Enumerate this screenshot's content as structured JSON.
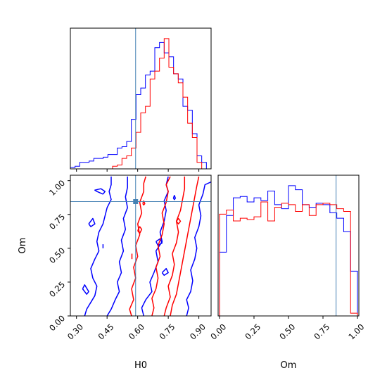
{
  "chart_data": {
    "type": "corner",
    "parameters": [
      "H0",
      "Om"
    ],
    "truth": {
      "H0": 0.59,
      "Om": 0.845
    },
    "truth_color": "#4682b4",
    "series": [
      {
        "color": "#0000ff"
      },
      {
        "color": "#ff0000"
      }
    ],
    "panels": [
      {
        "id": "hist-H0",
        "type": "histogram",
        "x_param": "H0",
        "xlim": [
          0.27,
          0.96
        ],
        "x_ticks": [
          0.3,
          0.45,
          0.6,
          0.75,
          0.9
        ],
        "tick_labels": [],
        "bin_edges": [
          0.27,
          0.293,
          0.316,
          0.339,
          0.362,
          0.385,
          0.408,
          0.431,
          0.454,
          0.477,
          0.5,
          0.523,
          0.546,
          0.569,
          0.592,
          0.615,
          0.638,
          0.661,
          0.684,
          0.707,
          0.73,
          0.753,
          0.776,
          0.799,
          0.822,
          0.845,
          0.868,
          0.891,
          0.914,
          0.937,
          0.96
        ],
        "series_counts": [
          [
            0.01,
            0.02,
            0.05,
            0.05,
            0.06,
            0.08,
            0.08,
            0.09,
            0.11,
            0.11,
            0.16,
            0.17,
            0.21,
            0.38,
            0.57,
            0.62,
            0.72,
            0.75,
            0.93,
            0.97,
            0.89,
            0.86,
            0.73,
            0.69,
            0.48,
            0.45,
            0.27,
            0.1,
            0.05,
            0.0
          ],
          [
            0.0,
            0.0,
            0.0,
            0.0,
            0.0,
            0.0,
            0.0,
            0.0,
            0.0,
            0.02,
            0.03,
            0.08,
            0.1,
            0.16,
            0.28,
            0.43,
            0.48,
            0.69,
            0.75,
            0.85,
            1.0,
            0.78,
            0.73,
            0.66,
            0.55,
            0.35,
            0.24,
            0.05,
            0.0,
            0.0
          ]
        ]
      },
      {
        "id": "hist-Om",
        "type": "histogram",
        "x_param": "Om",
        "xlim": [
          -0.01,
          1.01
        ],
        "x_ticks": [
          0.0,
          0.25,
          0.5,
          0.75,
          1.0
        ],
        "tick_labels": [
          "0.00",
          "0.25",
          "0.50",
          "0.75",
          "1.00"
        ],
        "xlabel": "Om",
        "bin_edges": [
          0.0,
          0.05,
          0.1,
          0.15,
          0.2,
          0.25,
          0.3,
          0.35,
          0.4,
          0.45,
          0.5,
          0.55,
          0.6,
          0.65,
          0.7,
          0.75,
          0.8,
          0.85,
          0.9,
          0.95,
          1.0
        ],
        "series_counts": [
          [
            0.47,
            0.74,
            0.87,
            0.88,
            0.84,
            0.87,
            0.85,
            0.92,
            0.82,
            0.79,
            0.96,
            0.93,
            0.82,
            0.8,
            0.83,
            0.82,
            0.76,
            0.72,
            0.62,
            0.33
          ],
          [
            0.75,
            0.78,
            0.7,
            0.72,
            0.71,
            0.73,
            0.84,
            0.7,
            0.8,
            0.83,
            0.82,
            0.77,
            0.82,
            0.74,
            0.82,
            0.83,
            0.82,
            0.79,
            0.77,
            0.02
          ]
        ]
      },
      {
        "id": "contour-H0-Om",
        "type": "contour",
        "x_param": "H0",
        "y_param": "Om",
        "xlim": [
          0.27,
          0.96
        ],
        "ylim": [
          0.0,
          1.04
        ],
        "x_ticks": [
          0.3,
          0.45,
          0.6,
          0.75,
          0.9
        ],
        "x_tick_labels": [
          "0.30",
          "0.45",
          "0.60",
          "0.75",
          "0.90"
        ],
        "y_ticks": [
          0.0,
          0.25,
          0.5,
          0.75,
          1.0
        ],
        "y_tick_labels": [
          "0.00",
          "0.25",
          "0.50",
          "0.75",
          "1.00"
        ],
        "xlabel": "H0",
        "ylabel": "Om",
        "contours": [
          {
            "series": 0,
            "points": [
              [
                0.34,
                0.0
              ],
              [
                0.35,
                0.05
              ],
              [
                0.37,
                0.1
              ],
              [
                0.39,
                0.15
              ],
              [
                0.4,
                0.22
              ],
              [
                0.38,
                0.28
              ],
              [
                0.37,
                0.35
              ],
              [
                0.39,
                0.42
              ],
              [
                0.41,
                0.48
              ],
              [
                0.4,
                0.55
              ],
              [
                0.41,
                0.62
              ],
              [
                0.43,
                0.68
              ],
              [
                0.44,
                0.74
              ],
              [
                0.45,
                0.8
              ],
              [
                0.47,
                0.86
              ],
              [
                0.46,
                0.92
              ],
              [
                0.47,
                0.97
              ],
              [
                0.47,
                1.03
              ]
            ]
          },
          {
            "series": 0,
            "points": [
              [
                0.45,
                0.0
              ],
              [
                0.47,
                0.05
              ],
              [
                0.49,
                0.12
              ],
              [
                0.51,
                0.18
              ],
              [
                0.5,
                0.25
              ],
              [
                0.52,
                0.32
              ],
              [
                0.51,
                0.4
              ],
              [
                0.53,
                0.48
              ],
              [
                0.52,
                0.56
              ],
              [
                0.54,
                0.64
              ],
              [
                0.53,
                0.72
              ],
              [
                0.55,
                0.8
              ],
              [
                0.54,
                0.88
              ],
              [
                0.55,
                0.95
              ],
              [
                0.55,
                1.03
              ]
            ]
          },
          {
            "series": 0,
            "points": [
              [
                0.63,
                0.0
              ],
              [
                0.62,
                0.06
              ],
              [
                0.64,
                0.12
              ],
              [
                0.67,
                0.18
              ],
              [
                0.66,
                0.25
              ],
              [
                0.68,
                0.32
              ],
              [
                0.7,
                0.4
              ],
              [
                0.69,
                0.48
              ],
              [
                0.72,
                0.55
              ],
              [
                0.71,
                0.62
              ],
              [
                0.73,
                0.7
              ],
              [
                0.74,
                0.78
              ],
              [
                0.73,
                0.85
              ],
              [
                0.75,
                0.92
              ],
              [
                0.74,
                0.97
              ],
              [
                0.75,
                1.03
              ]
            ]
          },
          {
            "series": 0,
            "points": [
              [
                0.84,
                0.0
              ],
              [
                0.85,
                0.06
              ],
              [
                0.84,
                0.12
              ],
              [
                0.86,
                0.18
              ],
              [
                0.87,
                0.26
              ],
              [
                0.86,
                0.34
              ],
              [
                0.88,
                0.42
              ],
              [
                0.89,
                0.5
              ],
              [
                0.88,
                0.58
              ],
              [
                0.9,
                0.66
              ],
              [
                0.91,
                0.74
              ],
              [
                0.9,
                0.82
              ],
              [
                0.92,
                0.9
              ],
              [
                0.93,
                0.97
              ],
              [
                0.96,
                0.99
              ]
            ]
          },
          {
            "series": 0,
            "points": [
              [
                0.43,
                0.9
              ],
              [
                0.4,
                0.92
              ],
              [
                0.39,
                0.93
              ],
              [
                0.42,
                0.94
              ],
              [
                0.44,
                0.92
              ],
              [
                0.43,
                0.9
              ]
            ]
          },
          {
            "series": 0,
            "points": [
              [
                0.36,
                0.68
              ],
              [
                0.38,
                0.72
              ],
              [
                0.39,
                0.68
              ],
              [
                0.37,
                0.66
              ],
              [
                0.36,
                0.68
              ]
            ]
          },
          {
            "series": 0,
            "points": [
              [
                0.33,
                0.2
              ],
              [
                0.34,
                0.23
              ],
              [
                0.36,
                0.18
              ],
              [
                0.35,
                0.16
              ],
              [
                0.33,
                0.2
              ]
            ]
          },
          {
            "series": 0,
            "points": [
              [
                0.72,
                0.32
              ],
              [
                0.74,
                0.35
              ],
              [
                0.75,
                0.32
              ],
              [
                0.73,
                0.3
              ],
              [
                0.72,
                0.32
              ]
            ]
          },
          {
            "series": 0,
            "points": [
              [
                0.69,
                0.55
              ],
              [
                0.71,
                0.57
              ],
              [
                0.72,
                0.54
              ],
              [
                0.7,
                0.52
              ],
              [
                0.69,
                0.55
              ]
            ]
          },
          {
            "series": 0,
            "points": [
              [
                0.775,
                0.87
              ],
              [
                0.78,
                0.89
              ],
              [
                0.785,
                0.87
              ],
              [
                0.78,
                0.86
              ],
              [
                0.775,
                0.87
              ]
            ]
          },
          {
            "series": 0,
            "points": [
              [
                0.43,
                0.5
              ],
              [
                0.43,
                0.53
              ]
            ]
          },
          {
            "series": 1,
            "points": [
              [
                0.57,
                0.0
              ],
              [
                0.56,
                0.05
              ],
              [
                0.58,
                0.12
              ],
              [
                0.57,
                0.2
              ],
              [
                0.59,
                0.28
              ],
              [
                0.58,
                0.36
              ],
              [
                0.6,
                0.44
              ],
              [
                0.59,
                0.52
              ],
              [
                0.61,
                0.6
              ],
              [
                0.6,
                0.68
              ],
              [
                0.62,
                0.76
              ],
              [
                0.61,
                0.84
              ],
              [
                0.63,
                0.92
              ],
              [
                0.63,
                0.98
              ],
              [
                0.64,
                1.03
              ]
            ]
          },
          {
            "series": 1,
            "points": [
              [
                0.67,
                0.0
              ],
              [
                0.68,
                0.06
              ],
              [
                0.67,
                0.13
              ],
              [
                0.69,
                0.2
              ],
              [
                0.7,
                0.28
              ],
              [
                0.69,
                0.36
              ],
              [
                0.71,
                0.44
              ],
              [
                0.7,
                0.52
              ],
              [
                0.72,
                0.6
              ],
              [
                0.73,
                0.68
              ],
              [
                0.72,
                0.76
              ],
              [
                0.74,
                0.84
              ],
              [
                0.75,
                0.92
              ],
              [
                0.74,
                0.97
              ],
              [
                0.76,
                1.03
              ]
            ]
          },
          {
            "series": 1,
            "points": [
              [
                0.73,
                0.0
              ],
              [
                0.74,
                0.06
              ],
              [
                0.76,
                0.14
              ],
              [
                0.75,
                0.22
              ],
              [
                0.77,
                0.3
              ],
              [
                0.78,
                0.38
              ],
              [
                0.77,
                0.46
              ],
              [
                0.79,
                0.54
              ],
              [
                0.8,
                0.62
              ],
              [
                0.79,
                0.7
              ],
              [
                0.81,
                0.78
              ],
              [
                0.82,
                0.86
              ],
              [
                0.83,
                0.94
              ],
              [
                0.83,
                1.03
              ]
            ]
          },
          {
            "series": 1,
            "points": [
              [
                0.76,
                0.0
              ],
              [
                0.77,
                0.08
              ],
              [
                0.79,
                0.16
              ],
              [
                0.8,
                0.24
              ],
              [
                0.81,
                0.32
              ],
              [
                0.82,
                0.4
              ],
              [
                0.83,
                0.48
              ],
              [
                0.84,
                0.56
              ],
              [
                0.85,
                0.64
              ],
              [
                0.86,
                0.72
              ],
              [
                0.87,
                0.8
              ],
              [
                0.88,
                0.88
              ],
              [
                0.89,
                0.96
              ],
              [
                0.9,
                1.03
              ]
            ]
          },
          {
            "series": 1,
            "points": [
              [
                0.6,
                0.63
              ],
              [
                0.61,
                0.66
              ],
              [
                0.62,
                0.64
              ],
              [
                0.61,
                0.61
              ],
              [
                0.6,
                0.63
              ]
            ]
          },
          {
            "series": 1,
            "points": [
              [
                0.79,
                0.7
              ],
              [
                0.8,
                0.72
              ],
              [
                0.81,
                0.7
              ],
              [
                0.8,
                0.68
              ],
              [
                0.79,
                0.7
              ]
            ]
          },
          {
            "series": 1,
            "points": [
              [
                0.625,
                0.83
              ],
              [
                0.63,
                0.85
              ],
              [
                0.635,
                0.83
              ],
              [
                0.63,
                0.82
              ],
              [
                0.625,
                0.83
              ]
            ]
          },
          {
            "series": 1,
            "points": [
              [
                0.572,
                0.42
              ],
              [
                0.572,
                0.46
              ]
            ]
          }
        ]
      }
    ]
  }
}
